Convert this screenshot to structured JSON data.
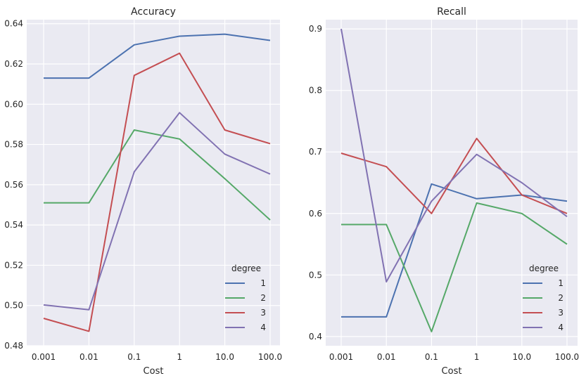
{
  "chart_data": [
    {
      "type": "line",
      "title": "Accuracy",
      "xlabel": "Cost",
      "ylabel": "",
      "categories": [
        "0.001",
        "0.01",
        "0.1",
        "1",
        "10.0",
        "100.0"
      ],
      "ylim": [
        0.48,
        0.642
      ],
      "yticks": [
        "0.48",
        "0.50",
        "0.52",
        "0.54",
        "0.56",
        "0.58",
        "0.60",
        "0.62",
        "0.64"
      ],
      "grid": true,
      "legend": {
        "title": "degree",
        "placement": "bottom-right"
      },
      "series": [
        {
          "name": "1",
          "color": "#4c72b0",
          "values": [
            0.613,
            0.613,
            0.6295,
            0.6338,
            0.6348,
            0.6317
          ]
        },
        {
          "name": "2",
          "color": "#55a868",
          "values": [
            0.551,
            0.551,
            0.5872,
            0.5827,
            0.563,
            0.5425
          ]
        },
        {
          "name": "3",
          "color": "#c44e52",
          "values": [
            0.4936,
            0.4872,
            0.6143,
            0.6253,
            0.5872,
            0.5804
          ]
        },
        {
          "name": "4",
          "color": "#8172b2",
          "values": [
            0.5003,
            0.4979,
            0.5664,
            0.5958,
            0.5752,
            0.5653
          ]
        }
      ]
    },
    {
      "type": "line",
      "title": "Recall",
      "xlabel": "Cost",
      "ylabel": "",
      "categories": [
        "0.001",
        "0.01",
        "0.1",
        "1",
        "10.0",
        "100.0"
      ],
      "ylim": [
        0.385,
        0.915
      ],
      "yticks": [
        "0.4",
        "0.5",
        "0.6",
        "0.7",
        "0.8",
        "0.9"
      ],
      "grid": true,
      "legend": {
        "title": "degree",
        "placement": "bottom-right"
      },
      "series": [
        {
          "name": "1",
          "color": "#4c72b0",
          "values": [
            0.432,
            0.432,
            0.648,
            0.624,
            0.63,
            0.62
          ]
        },
        {
          "name": "2",
          "color": "#55a868",
          "values": [
            0.582,
            0.582,
            0.408,
            0.617,
            0.6,
            0.55
          ]
        },
        {
          "name": "3",
          "color": "#c44e52",
          "values": [
            0.698,
            0.676,
            0.6,
            0.722,
            0.63,
            0.6
          ]
        },
        {
          "name": "4",
          "color": "#8172b2",
          "values": [
            0.9,
            0.489,
            0.62,
            0.696,
            0.65,
            0.595
          ]
        }
      ]
    }
  ]
}
